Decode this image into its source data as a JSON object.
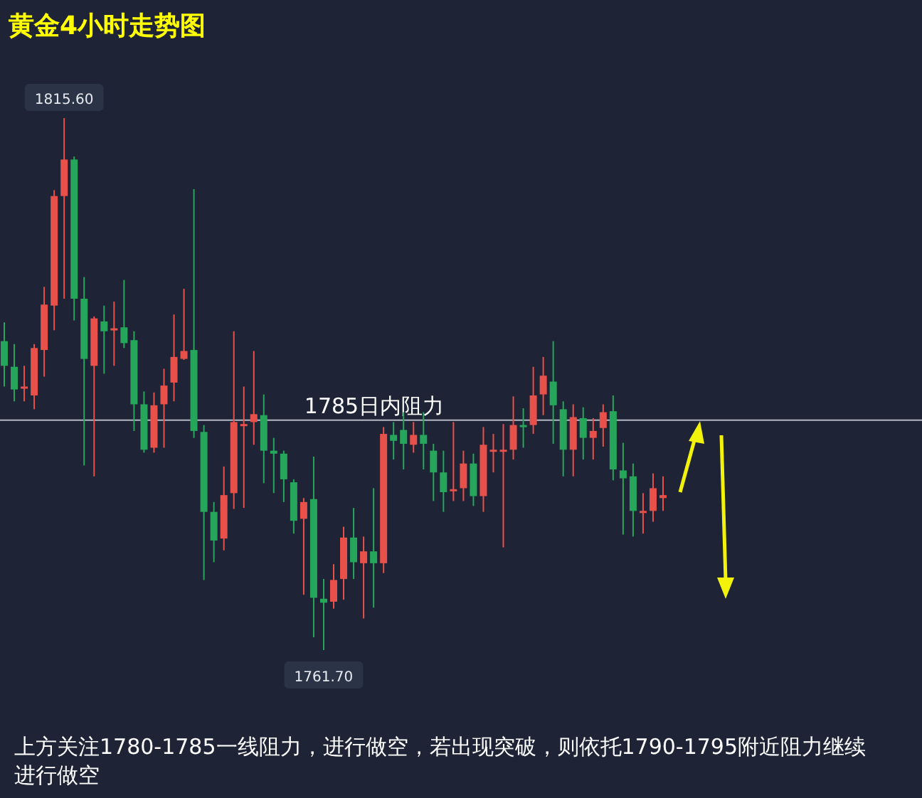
{
  "chart_data": {
    "type": "candlestick",
    "title": "黄金4小时走势图",
    "categories": [
      null,
      null,
      null,
      null,
      null,
      null,
      null,
      null,
      null,
      null,
      null,
      null,
      null,
      null,
      null,
      null,
      null,
      null,
      null,
      null,
      null,
      null,
      null,
      null,
      null,
      null,
      null,
      null,
      null,
      null,
      null,
      null,
      null,
      null,
      null,
      null,
      null,
      null,
      null,
      null,
      null,
      null,
      null,
      null,
      null,
      null,
      null,
      null,
      null,
      null,
      null,
      null,
      null,
      null,
      null,
      null,
      null,
      null,
      null,
      null,
      null,
      null,
      null,
      null,
      null,
      null,
      null
    ],
    "ohlc": [
      [
        1793.0,
        1794.9,
        1788.4,
        1790.5
      ],
      [
        1790.4,
        1792.7,
        1786.9,
        1788.1
      ],
      [
        1788.2,
        1790.5,
        1786.9,
        1788.4
      ],
      [
        1787.5,
        1792.7,
        1786.1,
        1792.3
      ],
      [
        1792.1,
        1798.5,
        1789.4,
        1796.7
      ],
      [
        1796.6,
        1808.3,
        1794.1,
        1807.7
      ],
      [
        1807.7,
        1815.6,
        1797.3,
        1811.4
      ],
      [
        1811.4,
        1811.7,
        1795.1,
        1797.3
      ],
      [
        1797.3,
        1799.5,
        1780.4,
        1791.2
      ],
      [
        1790.5,
        1795.5,
        1779.3,
        1795.3
      ],
      [
        1795.0,
        1796.6,
        1789.7,
        1794.0
      ],
      [
        1794.1,
        1797.0,
        1790.5,
        1794.3
      ],
      [
        1794.4,
        1799.2,
        1792.3,
        1792.8
      ],
      [
        1793.1,
        1794.0,
        1783.9,
        1786.6
      ],
      [
        1786.6,
        1787.9,
        1781.7,
        1782.0
      ],
      [
        1782.2,
        1787.8,
        1781.7,
        1786.5
      ],
      [
        1786.6,
        1790.2,
        1782.2,
        1788.5
      ],
      [
        1788.8,
        1795.7,
        1786.9,
        1791.4
      ],
      [
        1791.2,
        1798.3,
        1791.1,
        1792.0
      ],
      [
        1792.1,
        1808.4,
        1783.2,
        1783.9
      ],
      [
        1783.8,
        1784.5,
        1768.8,
        1775.7
      ],
      [
        1775.7,
        1776.7,
        1770.6,
        1772.8
      ],
      [
        1773.0,
        1780.3,
        1771.8,
        1777.4
      ],
      [
        1777.6,
        1794.0,
        1776.0,
        1784.8
      ],
      [
        1784.5,
        1788.4,
        1776.1,
        1784.6
      ],
      [
        1784.8,
        1792.0,
        1782.5,
        1785.6
      ],
      [
        1785.5,
        1787.6,
        1778.6,
        1781.9
      ],
      [
        1781.9,
        1783.2,
        1777.6,
        1781.6
      ],
      [
        1781.6,
        1781.9,
        1776.7,
        1779.0
      ],
      [
        1778.7,
        1779.0,
        1773.5,
        1774.8
      ],
      [
        1775.0,
        1777.1,
        1767.3,
        1776.7
      ],
      [
        1777.0,
        1781.3,
        1763.0,
        1767.0
      ],
      [
        1766.9,
        1768.9,
        1761.7,
        1766.5
      ],
      [
        1766.6,
        1770.4,
        1765.9,
        1768.8
      ],
      [
        1768.9,
        1774.2,
        1766.8,
        1773.1
      ],
      [
        1773.1,
        1776.1,
        1768.9,
        1770.6
      ],
      [
        1770.5,
        1773.2,
        1764.9,
        1771.7
      ],
      [
        1771.7,
        1778.1,
        1766.0,
        1770.5
      ],
      [
        1770.5,
        1784.3,
        1769.5,
        1783.6
      ],
      [
        1783.5,
        1784.8,
        1781.0,
        1782.9
      ],
      [
        1784.0,
        1785.8,
        1780.0,
        1782.6
      ],
      [
        1782.5,
        1784.8,
        1781.7,
        1783.5
      ],
      [
        1783.5,
        1785.8,
        1780.0,
        1782.6
      ],
      [
        1781.9,
        1782.6,
        1776.8,
        1779.7
      ],
      [
        1779.7,
        1781.9,
        1775.7,
        1777.7
      ],
      [
        1777.8,
        1784.8,
        1776.8,
        1778.0
      ],
      [
        1778.1,
        1781.9,
        1776.8,
        1780.6
      ],
      [
        1780.6,
        1781.6,
        1776.3,
        1777.3
      ],
      [
        1777.3,
        1784.3,
        1775.7,
        1782.5
      ],
      [
        1781.9,
        1783.6,
        1779.7,
        1782.0
      ],
      [
        1781.9,
        1784.6,
        1772.1,
        1782.0
      ],
      [
        1782.0,
        1787.4,
        1781.0,
        1784.5
      ],
      [
        1784.5,
        1786.2,
        1782.2,
        1784.3
      ],
      [
        1784.5,
        1790.4,
        1783.6,
        1787.5
      ],
      [
        1787.6,
        1791.4,
        1785.5,
        1789.5
      ],
      [
        1788.9,
        1793.0,
        1782.6,
        1786.5
      ],
      [
        1786.1,
        1786.9,
        1779.3,
        1782.0
      ],
      [
        1782.0,
        1786.6,
        1779.3,
        1785.3
      ],
      [
        1785.2,
        1786.3,
        1781.0,
        1783.2
      ],
      [
        1783.2,
        1785.2,
        1781.0,
        1783.9
      ],
      [
        1784.2,
        1786.6,
        1782.3,
        1785.8
      ],
      [
        1785.9,
        1787.5,
        1778.9,
        1780.0
      ],
      [
        1779.9,
        1782.7,
        1773.4,
        1779.1
      ],
      [
        1779.3,
        1780.6,
        1773.2,
        1775.8
      ],
      [
        1775.7,
        1777.6,
        1773.5,
        1775.8
      ],
      [
        1775.8,
        1779.6,
        1774.7,
        1778.1
      ],
      [
        1777.1,
        1779.3,
        1775.8,
        1777.4
      ]
    ],
    "colors": [
      "#26a65b",
      "#26a65b",
      "#e8514a",
      "#e8514a",
      "#e8514a",
      "#e8514a",
      "#e8514a",
      "#26a65b",
      "#26a65b",
      "#e8514a",
      "#26a65b",
      "#e8514a",
      "#26a65b",
      "#26a65b",
      "#26a65b",
      "#e8514a",
      "#e8514a",
      "#e8514a",
      "#e8514a",
      "#26a65b",
      "#26a65b",
      "#26a65b",
      "#e8514a",
      "#e8514a",
      "#e8514a",
      "#e8514a",
      "#26a65b",
      "#26a65b",
      "#26a65b",
      "#26a65b",
      "#e8514a",
      "#26a65b",
      "#26a65b",
      "#e8514a",
      "#e8514a",
      "#26a65b",
      "#e8514a",
      "#26a65b",
      "#e8514a",
      "#26a65b",
      "#26a65b",
      "#e8514a",
      "#26a65b",
      "#26a65b",
      "#26a65b",
      "#e8514a",
      "#e8514a",
      "#26a65b",
      "#e8514a",
      "#e8514a",
      "#e8514a",
      "#e8514a",
      "#26a65b",
      "#e8514a",
      "#e8514a",
      "#26a65b",
      "#26a65b",
      "#e8514a",
      "#26a65b",
      "#e8514a",
      "#e8514a",
      "#26a65b",
      "#26a65b",
      "#26a65b",
      "#e8514a",
      "#e8514a",
      "#e8514a"
    ],
    "ref_lines": [
      {
        "axis": "y",
        "value": 1785,
        "label": "1785日内阻力",
        "color": "#b4b9c4"
      }
    ],
    "annotations": [
      {
        "text": "1815.60",
        "y": 1815.6
      },
      {
        "text": "1761.70",
        "y": 1761.7
      },
      "上方关注1780-1785一线阻力，进行做空，若出现突破，则依托1790-1795附近阻力继续进行做空"
    ]
  }
}
